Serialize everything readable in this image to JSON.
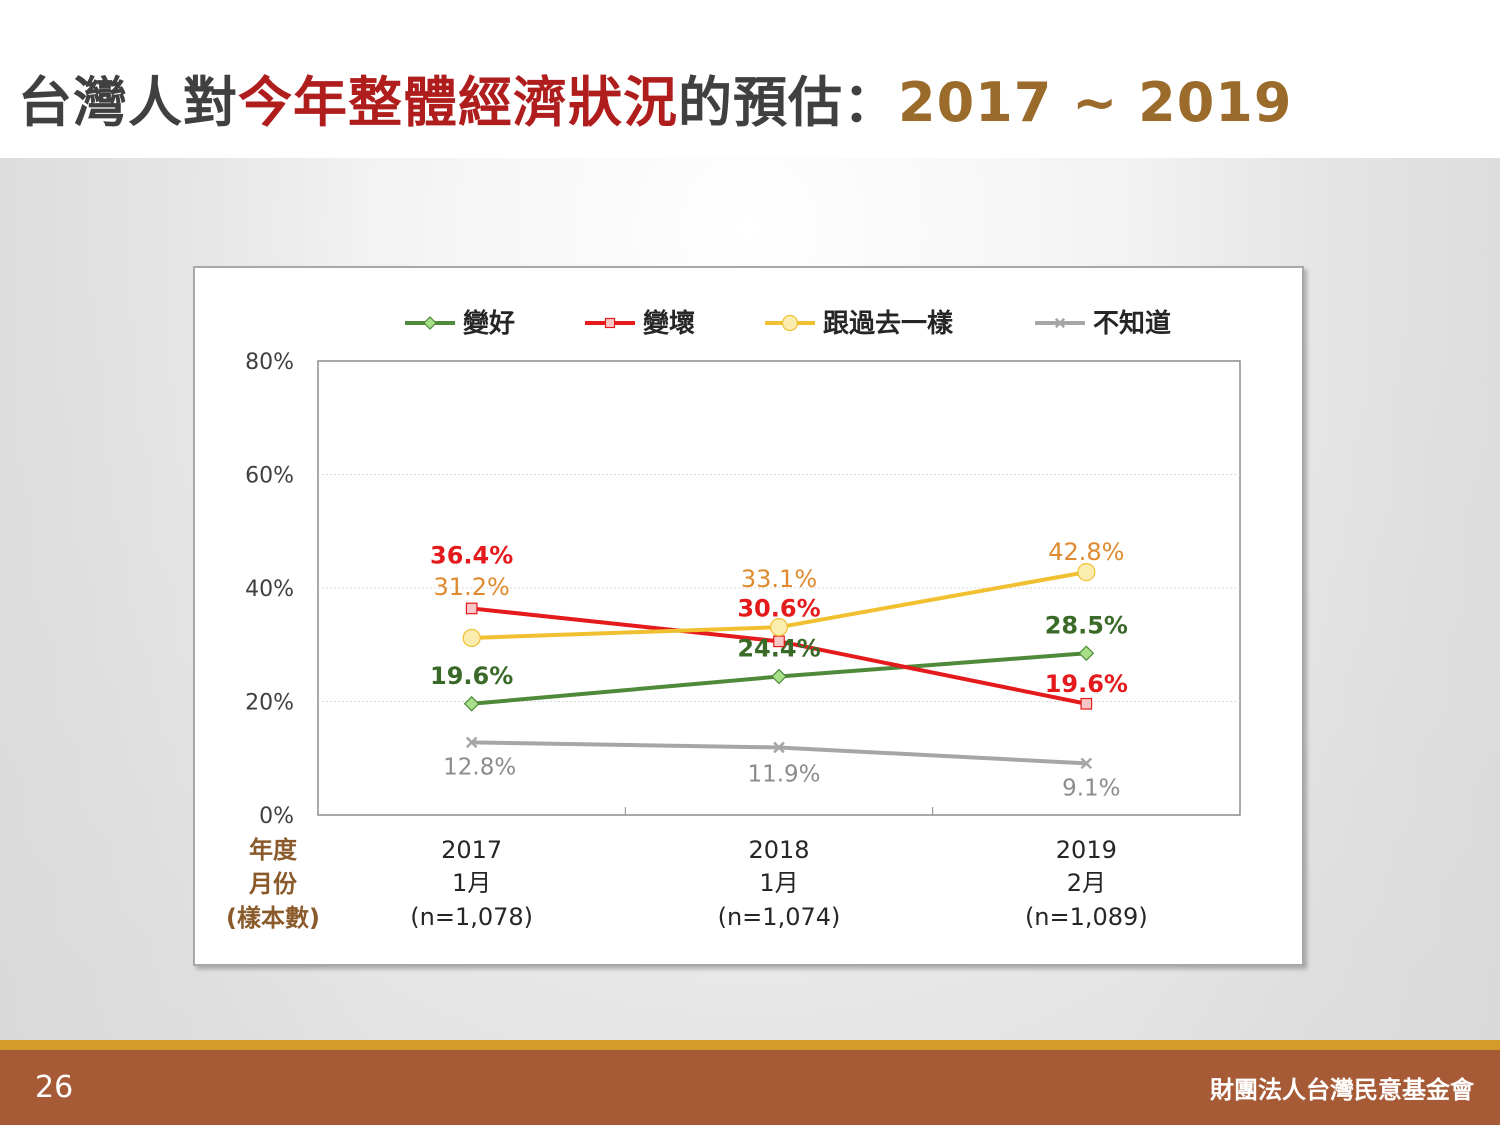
{
  "slide": {
    "title_part1": "台灣人對",
    "title_part2": "今年整體經濟狀況",
    "title_part3": "的預估：",
    "title_part4": "2017 ~ 2019",
    "page_number": "26",
    "organization": "財團法人台灣民意基金會"
  },
  "chart_data": {
    "type": "line",
    "categories": [
      "2017",
      "2018",
      "2019"
    ],
    "category_months": [
      "1月",
      "1月",
      "2月"
    ],
    "category_samples": [
      "(n=1,078)",
      "(n=1,074)",
      "(n=1,089)"
    ],
    "row_labels": [
      "年度",
      "月份",
      "(樣本數)"
    ],
    "ylim": [
      0,
      80
    ],
    "yticks": [
      "0%",
      "20%",
      "40%",
      "60%",
      "80%"
    ],
    "legend_position": "top",
    "grid": true,
    "series": [
      {
        "name": "變好",
        "values": [
          19.6,
          24.4,
          28.5
        ],
        "labels": [
          "19.6%",
          "24.4%",
          "28.5%"
        ],
        "color": "#4e8a3a",
        "marker": "diamond",
        "marker_fill": "#a8e08a",
        "label_color": "#3a6a28"
      },
      {
        "name": "變壞",
        "values": [
          36.4,
          30.6,
          19.6
        ],
        "labels": [
          "36.4%",
          "30.6%",
          "19.6%"
        ],
        "color": "#e41a1c",
        "marker": "square",
        "marker_fill": "#f8c8c8",
        "label_color": "#e41a1c"
      },
      {
        "name": "跟過去一樣",
        "values": [
          31.2,
          33.1,
          42.8
        ],
        "labels": [
          "31.2%",
          "33.1%",
          "42.8%"
        ],
        "color": "#f0c030",
        "marker": "circle",
        "marker_fill": "#fbedb0",
        "label_color": "#e08a30"
      },
      {
        "name": "不知道",
        "values": [
          12.8,
          11.9,
          9.1
        ],
        "labels": [
          "12.8%",
          "11.9%",
          "9.1%"
        ],
        "color": "#a6a6a6",
        "marker": "x",
        "marker_fill": "#a6a6a6",
        "label_color": "#8c8c8c"
      }
    ]
  }
}
